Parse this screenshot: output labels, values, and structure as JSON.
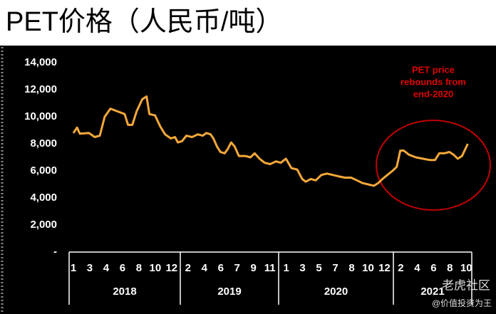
{
  "chart_data": {
    "type": "line",
    "title": "PET价格（人民币/吨）",
    "annotation": [
      "PET price",
      "rebounds from",
      "end-2020"
    ],
    "watermark": [
      "老虎社区",
      "@价值投资为王"
    ],
    "year_labels": [
      "2018",
      "2019",
      "2020",
      "2021"
    ],
    "xlim": [
      -0.1,
      24.2
    ],
    "xticks": [
      {
        "value": 0,
        "label": "1"
      },
      {
        "value": 1,
        "label": "3"
      },
      {
        "value": 2,
        "label": "4"
      },
      {
        "value": 3,
        "label": "6"
      },
      {
        "value": 4,
        "label": "8"
      },
      {
        "value": 5,
        "label": "10"
      },
      {
        "value": 6,
        "label": "12"
      },
      {
        "value": 7,
        "label": "2"
      },
      {
        "value": 8,
        "label": "4"
      },
      {
        "value": 9,
        "label": "6"
      },
      {
        "value": 10,
        "label": "7"
      },
      {
        "value": 11,
        "label": "9"
      },
      {
        "value": 12,
        "label": "11"
      },
      {
        "value": 13,
        "label": "1"
      },
      {
        "value": 14,
        "label": "3"
      },
      {
        "value": 15,
        "label": "5"
      },
      {
        "value": 16,
        "label": "7"
      },
      {
        "value": 17,
        "label": "8"
      },
      {
        "value": 18,
        "label": "10"
      },
      {
        "value": 19,
        "label": "12"
      },
      {
        "value": 20,
        "label": "2"
      },
      {
        "value": 21,
        "label": "4"
      },
      {
        "value": 22,
        "label": "6"
      },
      {
        "value": 23,
        "label": "8"
      },
      {
        "value": 24,
        "label": "10"
      }
    ],
    "ylim": [
      0,
      14000
    ],
    "yticks": [
      {
        "value": 0,
        "label": "-"
      },
      {
        "value": 2000,
        "label": "2,000"
      },
      {
        "value": 4000,
        "label": "4,000"
      },
      {
        "value": 6000,
        "label": "6,000"
      },
      {
        "value": 8000,
        "label": "8,000"
      },
      {
        "value": 10000,
        "label": "10,000"
      },
      {
        "value": 12000,
        "label": "12,000"
      },
      {
        "value": 14000,
        "label": "14,000"
      }
    ],
    "color": "#f5a83a",
    "x": [
      0,
      0.22,
      0.39,
      0.95,
      1.3,
      1.61,
      1.91,
      2.26,
      2.69,
      3.13,
      3.34,
      3.6,
      3.86,
      4.21,
      4.47,
      4.64,
      4.99,
      5.3,
      5.6,
      5.95,
      6.21,
      6.38,
      6.64,
      6.9,
      7.25,
      7.6,
      7.9,
      8.12,
      8.38,
      8.55,
      8.77,
      8.98,
      9.24,
      9.42,
      9.64,
      9.85,
      10.11,
      10.5,
      10.81,
      11.07,
      11.37,
      11.68,
      12.02,
      12.37,
      12.67,
      12.98,
      13.32,
      13.67,
      13.98,
      14.19,
      14.5,
      14.8,
      15.15,
      15.49,
      15.84,
      16.19,
      16.58,
      16.97,
      17.32,
      17.66,
      18.01,
      18.36,
      18.62,
      18.88,
      19.18,
      19.49,
      19.75,
      19.97,
      20.18,
      20.49,
      20.92,
      21.35,
      21.79,
      22.09,
      22.35,
      22.66,
      22.96,
      23.22,
      23.48,
      23.74,
      24.09
    ],
    "values": [
      8800,
      9200,
      8750,
      8800,
      8500,
      8600,
      10000,
      10600,
      10400,
      10200,
      9400,
      9400,
      10400,
      11300,
      11500,
      10200,
      10100,
      9300,
      8700,
      8400,
      8500,
      8100,
      8200,
      8600,
      8500,
      8700,
      8600,
      8800,
      8700,
      8400,
      7800,
      7400,
      7300,
      7600,
      8100,
      7800,
      7100,
      7100,
      7000,
      7300,
      6900,
      6600,
      6500,
      6700,
      6600,
      6900,
      6200,
      6100,
      5400,
      5200,
      5400,
      5300,
      5700,
      5800,
      5700,
      5600,
      5500,
      5500,
      5300,
      5100,
      5000,
      4900,
      5100,
      5400,
      5700,
      6000,
      6300,
      7500,
      7500,
      7200,
      7000,
      6900,
      6800,
      6800,
      7300,
      7300,
      7400,
      7200,
      6900,
      7100,
      8000
    ]
  }
}
